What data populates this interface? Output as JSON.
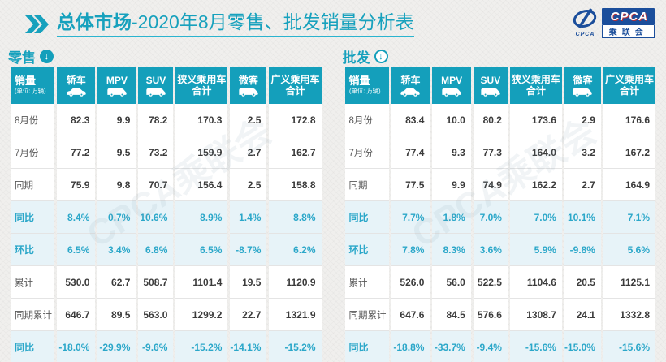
{
  "page": {
    "title_bold": "总体市场",
    "title_rest": "-2020年8月零售、批发销量分析表",
    "sales_label": "销量",
    "unit_note": "(单位: 万辆)",
    "watermark": "CPCA乘联会"
  },
  "logo": {
    "acronym": "CPCA",
    "cn_name": "乘联会",
    "mark_text": "CPCA"
  },
  "colors": {
    "teal": "#149fbb",
    "teal_text": "#2ba7c9",
    "highlight_bg": "#e7f3f8",
    "logo_blue": "#1b4e9b"
  },
  "chart_data": [
    {
      "type": "table",
      "title": "零售",
      "arrow_icon": "down-arrow-filled",
      "columns": [
        {
          "label": "轿车",
          "sub": "",
          "icon": "sedan-icon"
        },
        {
          "label": "MPV",
          "sub": "",
          "icon": "mpv-icon"
        },
        {
          "label": "SUV",
          "sub": "",
          "icon": "suv-icon"
        },
        {
          "label": "狭义乘用车",
          "sub": "合计",
          "icon": null
        },
        {
          "label": "微客",
          "sub": "",
          "icon": "minibus-icon"
        },
        {
          "label": "广义乘用车",
          "sub": "合计",
          "icon": null
        }
      ],
      "rows": [
        {
          "label": "8月份",
          "highlight": false,
          "values": [
            "82.3",
            "9.9",
            "78.2",
            "170.3",
            "2.5",
            "172.8"
          ]
        },
        {
          "label": "7月份",
          "highlight": false,
          "values": [
            "77.2",
            "9.5",
            "73.2",
            "159.9",
            "2.7",
            "162.7"
          ]
        },
        {
          "label": "同期",
          "highlight": false,
          "values": [
            "75.9",
            "9.8",
            "70.7",
            "156.4",
            "2.5",
            "158.8"
          ]
        },
        {
          "label": "同比",
          "highlight": true,
          "values": [
            "8.4%",
            "0.7%",
            "10.6%",
            "8.9%",
            "1.4%",
            "8.8%"
          ]
        },
        {
          "label": "环比",
          "highlight": true,
          "values": [
            "6.5%",
            "3.4%",
            "6.8%",
            "6.5%",
            "-8.7%",
            "6.2%"
          ]
        },
        {
          "label": "累计",
          "highlight": false,
          "values": [
            "530.0",
            "62.7",
            "508.7",
            "1101.4",
            "19.5",
            "1120.9"
          ]
        },
        {
          "label": "同期累计",
          "highlight": false,
          "values": [
            "646.7",
            "89.5",
            "563.0",
            "1299.2",
            "22.7",
            "1321.9"
          ]
        },
        {
          "label": "同比",
          "highlight": true,
          "values": [
            "-18.0%",
            "-29.9%",
            "-9.6%",
            "-15.2%",
            "-14.1%",
            "-15.2%"
          ]
        }
      ]
    },
    {
      "type": "table",
      "title": "批发",
      "arrow_icon": "down-arrow-outline",
      "columns": [
        {
          "label": "轿车",
          "sub": "",
          "icon": "sedan-icon"
        },
        {
          "label": "MPV",
          "sub": "",
          "icon": "mpv-icon"
        },
        {
          "label": "SUV",
          "sub": "",
          "icon": "suv-icon"
        },
        {
          "label": "狭义乘用车",
          "sub": "合计",
          "icon": null
        },
        {
          "label": "微客",
          "sub": "",
          "icon": "minibus-icon"
        },
        {
          "label": "广义乘用车",
          "sub": "合计",
          "icon": null
        }
      ],
      "rows": [
        {
          "label": "8月份",
          "highlight": false,
          "values": [
            "83.4",
            "10.0",
            "80.2",
            "173.6",
            "2.9",
            "176.6"
          ]
        },
        {
          "label": "7月份",
          "highlight": false,
          "values": [
            "77.4",
            "9.3",
            "77.3",
            "164.0",
            "3.2",
            "167.2"
          ]
        },
        {
          "label": "同期",
          "highlight": false,
          "values": [
            "77.5",
            "9.9",
            "74.9",
            "162.2",
            "2.7",
            "164.9"
          ]
        },
        {
          "label": "同比",
          "highlight": true,
          "values": [
            "7.7%",
            "1.8%",
            "7.0%",
            "7.0%",
            "10.1%",
            "7.1%"
          ]
        },
        {
          "label": "环比",
          "highlight": true,
          "values": [
            "7.8%",
            "8.3%",
            "3.6%",
            "5.9%",
            "-9.8%",
            "5.6%"
          ]
        },
        {
          "label": "累计",
          "highlight": false,
          "values": [
            "526.0",
            "56.0",
            "522.5",
            "1104.6",
            "20.5",
            "1125.1"
          ]
        },
        {
          "label": "同期累计",
          "highlight": false,
          "values": [
            "647.6",
            "84.5",
            "576.6",
            "1308.7",
            "24.1",
            "1332.8"
          ]
        },
        {
          "label": "同比",
          "highlight": true,
          "values": [
            "-18.8%",
            "-33.7%",
            "-9.4%",
            "-15.6%",
            "-15.0%",
            "-15.6%"
          ]
        }
      ]
    }
  ]
}
